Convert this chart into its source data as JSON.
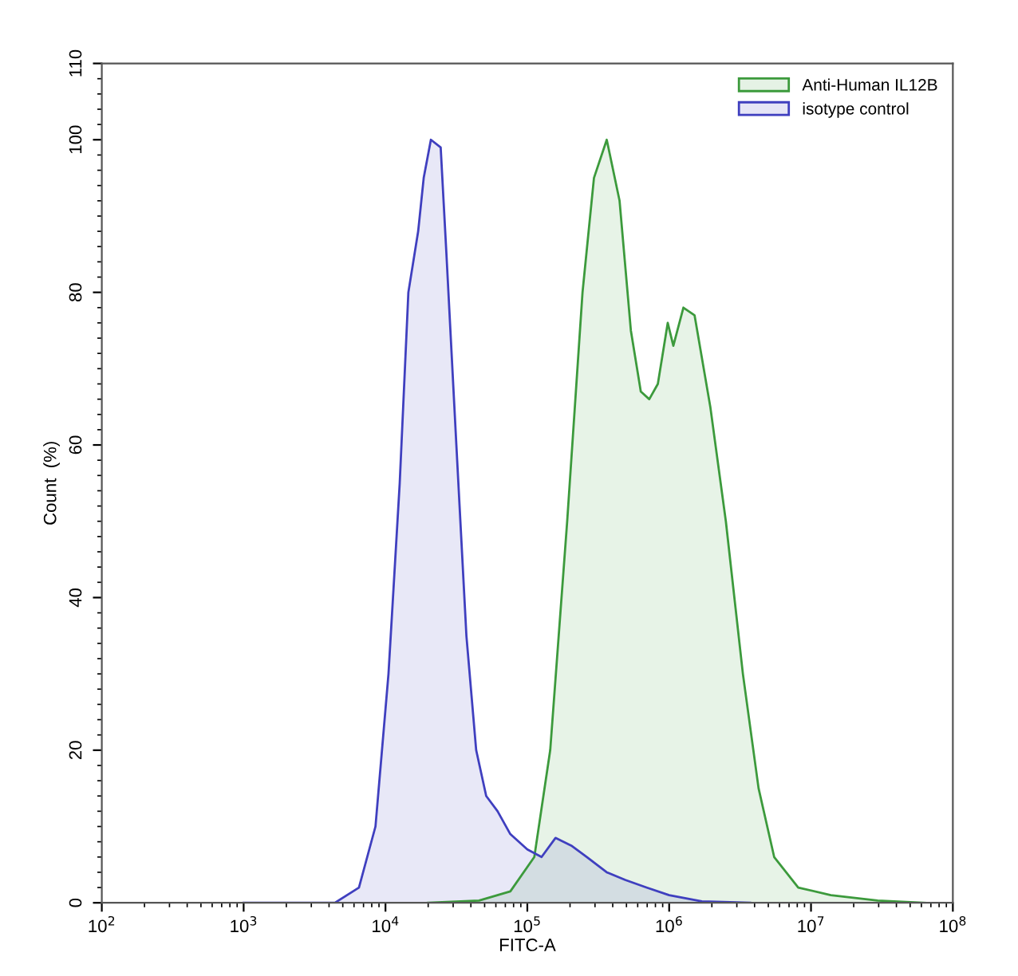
{
  "chart_data": {
    "type": "area",
    "xlabel": "FITC-A",
    "ylabel": "Count  (%)",
    "log": "x",
    "xlim": [
      100,
      100000000
    ],
    "ylim": [
      0,
      110
    ],
    "xticks": [
      {
        "value": 100,
        "label": "10$^{2}$"
      },
      {
        "value": 1000,
        "label": "10$^{3}$"
      },
      {
        "value": 10000,
        "label": "10$^{4}$"
      },
      {
        "value": 100000,
        "label": "10$^{5}$"
      },
      {
        "value": 1000000,
        "label": "10$^{6}$"
      },
      {
        "value": 10000000,
        "label": "10$^{7}$"
      },
      {
        "value": 100000000,
        "label": "10$^{8}$"
      }
    ],
    "yticks": [
      0,
      20,
      40,
      60,
      80,
      100,
      110
    ],
    "grid": false,
    "legend": "top right",
    "series": [
      {
        "name": "Anti-Human IL12B",
        "color": "#3c9a3c",
        "x": [
          20000,
          45700,
          75900,
          112000,
          145000,
          191000,
          245000,
          295000,
          363000,
          447000,
          537000,
          631000,
          724000,
          832000,
          977000,
          1070000,
          1260000,
          1510000,
          1950000,
          2510000,
          3310000,
          4270000,
          5500000,
          8130000,
          13800000,
          29500000,
          64600000
        ],
        "values": [
          0,
          0.3,
          1.5,
          6,
          20,
          50,
          80,
          95,
          100,
          92,
          75,
          67,
          66,
          68,
          76,
          73,
          78,
          77,
          65,
          50,
          30,
          15,
          6,
          2,
          1,
          0.3,
          0
        ]
      },
      {
        "name": "isotype control",
        "color": "#3f3fbf",
        "x": [
          1000,
          4400,
          6500,
          8500,
          10500,
          12600,
          14500,
          17000,
          18600,
          20900,
          24500,
          26900,
          31600,
          37200,
          43600,
          51300,
          61700,
          75900,
          100000,
          126000,
          158000,
          204000,
          263000,
          363000,
          490000,
          692000,
          1000000,
          1700000,
          3720000
        ],
        "values": [
          0,
          0,
          2,
          10,
          30,
          55,
          80,
          88,
          95,
          100,
          99,
          85,
          60,
          35,
          20,
          14,
          12,
          9,
          7,
          6,
          8.5,
          7.5,
          6,
          4,
          3,
          2,
          1,
          0.2,
          0
        ]
      }
    ]
  }
}
